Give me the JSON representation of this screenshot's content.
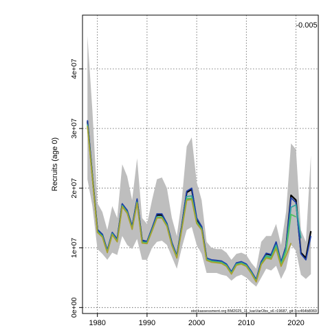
{
  "chart_data": {
    "type": "line",
    "title": "",
    "annotation": "-0.005",
    "footer": "stockassessment.org BM2025_11_kasVarObs_s6 r19687, git:1cc464b8069",
    "ylabel": "Recruits (age 0)",
    "xlabel": "",
    "xlim": [
      1977,
      2024.5
    ],
    "ylim": [
      -1000000,
      49000000
    ],
    "x_ticks": [
      1980,
      1990,
      2000,
      2010,
      2020
    ],
    "x_tick_labels": [
      "1980",
      "1990",
      "2000",
      "2010",
      "2020"
    ],
    "y_ticks": [
      0,
      10000000,
      20000000,
      30000000,
      40000000
    ],
    "y_tick_labels": [
      "0e+00",
      "1e+07",
      "2e+07",
      "3e+07",
      "4e+07"
    ],
    "grid": true,
    "band_color": "#bebebe",
    "band": {
      "x": [
        1978,
        1979,
        1980,
        1981,
        1982,
        1983,
        1984,
        1985,
        1986,
        1987,
        1988,
        1989,
        1990,
        1991,
        1992,
        1993,
        1994,
        1995,
        1996,
        1997,
        1998,
        1999,
        2000,
        2001,
        2002,
        2003,
        2004,
        2005,
        2006,
        2007,
        2008,
        2009,
        2010,
        2011,
        2012,
        2013,
        2014,
        2015,
        2016,
        2017,
        2018,
        2019,
        2020,
        2021,
        2022,
        2023
      ],
      "upper": [
        45500000,
        33000000,
        17500000,
        16000000,
        13000000,
        17000000,
        15000000,
        24000000,
        22000000,
        18000000,
        25000000,
        15000000,
        14000000,
        18000000,
        21500000,
        21800000,
        20000000,
        15000000,
        12000000,
        18000000,
        27000000,
        28500000,
        21000000,
        18000000,
        11000000,
        10000000,
        9800000,
        9800000,
        9200000,
        8000000,
        9000000,
        9200000,
        8800000,
        7500000,
        6500000,
        11000000,
        12000000,
        12000000,
        14000000,
        10500000,
        16000000,
        27500000,
        26500000,
        13000000,
        11000000,
        25500000
      ],
      "lower": [
        21500000,
        17000000,
        9800000,
        9000000,
        8000000,
        9200000,
        8800000,
        12000000,
        10500000,
        9800000,
        11500000,
        8000000,
        8000000,
        10000000,
        11000000,
        11200000,
        10500000,
        8500000,
        6500000,
        10000000,
        13000000,
        13500000,
        10500000,
        9000000,
        5800000,
        5800000,
        5800000,
        5500000,
        5300000,
        4500000,
        5200000,
        5500000,
        5000000,
        4200000,
        3500000,
        5000000,
        6500000,
        6200000,
        7000000,
        4800000,
        6500000,
        10500000,
        9500000,
        5500000,
        4800000,
        5600000
      ]
    },
    "series": [
      {
        "color": "#000000",
        "x": [
          1978,
          1979,
          1980,
          1981,
          1982,
          1983,
          1984,
          1985,
          1986,
          1987,
          1988,
          1989,
          1990,
          1991,
          1992,
          1993,
          1994,
          1995,
          1996,
          1997,
          1998,
          1999,
          2000,
          2001,
          2002,
          2003,
          2004,
          2005,
          2006,
          2007,
          2008,
          2009,
          2010,
          2011,
          2012,
          2013,
          2014,
          2015,
          2016,
          2017,
          2018,
          2019,
          2020,
          2021,
          2022,
          2023
        ],
        "values": [
          31200000,
          22000000,
          13000000,
          12200000,
          9500000,
          12500000,
          11400000,
          17300000,
          16200000,
          13500000,
          18000000,
          11200000,
          11000000,
          13200000,
          15500000,
          15500000,
          14000000,
          10800000,
          8600000,
          13600000,
          19300000,
          19800000,
          14800000,
          13500000,
          8200000,
          7900000,
          7800000,
          7700000,
          7200000,
          5900000,
          7400000,
          7600000,
          7200000,
          6000000,
          4600000,
          7600000,
          9000000,
          8800000,
          10900000,
          7500000,
          10200000,
          18800000,
          18000000,
          9200000,
          8300000,
          12800000
        ]
      },
      {
        "color": "#1f3fa8",
        "x": [
          1978,
          1979,
          1980,
          1981,
          1982,
          1983,
          1984,
          1985,
          1986,
          1987,
          1988,
          1989,
          1990,
          1991,
          1992,
          1993,
          1994,
          1995,
          1996,
          1997,
          1998,
          1999,
          2000,
          2001,
          2002,
          2003,
          2004,
          2005,
          2006,
          2007,
          2008,
          2009,
          2010,
          2011,
          2012,
          2013,
          2014,
          2015,
          2016,
          2017,
          2018,
          2019,
          2020,
          2021,
          2022,
          2023
        ],
        "values": [
          31400000,
          22100000,
          13100000,
          12300000,
          9600000,
          12600000,
          11500000,
          17400000,
          16300000,
          13600000,
          18200000,
          11300000,
          11100000,
          13300000,
          15700000,
          15700000,
          14100000,
          10900000,
          8700000,
          13700000,
          19500000,
          20000000,
          15000000,
          13600000,
          8300000,
          8000000,
          7900000,
          7800000,
          7300000,
          6000000,
          7500000,
          7700000,
          7300000,
          6100000,
          4700000,
          7700000,
          9100000,
          8900000,
          11000000,
          7600000,
          10300000,
          18400000,
          17600000,
          9000000,
          8000000,
          12000000
        ]
      },
      {
        "color": "#2fa6a0",
        "x": [
          1978,
          1979,
          1980,
          1981,
          1982,
          1983,
          1984,
          1985,
          1986,
          1987,
          1988,
          1989,
          1990,
          1991,
          1992,
          1993,
          1994,
          1995,
          1996,
          1997,
          1998,
          1999,
          2000,
          2001,
          2002,
          2003,
          2004,
          2005,
          2006,
          2007,
          2008,
          2009,
          2010,
          2011,
          2012,
          2013,
          2014,
          2015,
          2016,
          2017,
          2018,
          2019,
          2020,
          2021
        ],
        "values": [
          30700000,
          21900000,
          12800000,
          12000000,
          9400000,
          12400000,
          11200000,
          17100000,
          16000000,
          13300000,
          17700000,
          11000000,
          10900000,
          13000000,
          15200000,
          15200000,
          13800000,
          10600000,
          8500000,
          13300000,
          18600000,
          18700000,
          14400000,
          13200000,
          8100000,
          7800000,
          7700000,
          7600000,
          7100000,
          5800000,
          7300000,
          7500000,
          7100000,
          5900000,
          4500000,
          7400000,
          8700000,
          8500000,
          10500000,
          7300000,
          9800000,
          16800000,
          17200000,
          11600000
        ]
      },
      {
        "color": "#4fbf60",
        "x": [
          1978,
          1979,
          1980,
          1981,
          1982,
          1983,
          1984,
          1985,
          1986,
          1987,
          1988,
          1989,
          1990,
          1991,
          1992,
          1993,
          1994,
          1995,
          1996,
          1997,
          1998,
          1999,
          2000,
          2001,
          2002,
          2003,
          2004,
          2005,
          2006,
          2007,
          2008,
          2009,
          2010,
          2011,
          2012,
          2013,
          2014,
          2015,
          2016,
          2017,
          2018,
          2019,
          2020
        ],
        "values": [
          30500000,
          21800000,
          12700000,
          11900000,
          9300000,
          12300000,
          11100000,
          17000000,
          15900000,
          13200000,
          17600000,
          10900000,
          10800000,
          12900000,
          15100000,
          15100000,
          13700000,
          10500000,
          8400000,
          13200000,
          18200000,
          18300000,
          14200000,
          13100000,
          8000000,
          7700000,
          7600000,
          7500000,
          7000000,
          5700000,
          7200000,
          7400000,
          7000000,
          5800000,
          4400000,
          7300000,
          8500000,
          8300000,
          10200000,
          7100000,
          9500000,
          15600000,
          15200000
        ]
      },
      {
        "color": "#a8a030",
        "x": [
          1978,
          1979,
          1980,
          1981,
          1982,
          1983,
          1984,
          1985,
          1986,
          1987,
          1988,
          1989,
          1990,
          1991,
          1992,
          1993,
          1994,
          1995,
          1996,
          1997,
          1998,
          1999,
          2000,
          2001,
          2002,
          2003,
          2004,
          2005,
          2006,
          2007,
          2008,
          2009,
          2010,
          2011,
          2012,
          2013,
          2014,
          2015,
          2016,
          2017,
          2018,
          2019
        ],
        "values": [
          30400000,
          21700000,
          12600000,
          11800000,
          9200000,
          12200000,
          11000000,
          16900000,
          15800000,
          13100000,
          17500000,
          10800000,
          10700000,
          12800000,
          15000000,
          15000000,
          13600000,
          10400000,
          8300000,
          13100000,
          18000000,
          18100000,
          14100000,
          13000000,
          7900000,
          7600000,
          7500000,
          7400000,
          6900000,
          5600000,
          7100000,
          7300000,
          6900000,
          5700000,
          4300000,
          7200000,
          8300000,
          8100000,
          9900000,
          6900000,
          8700000,
          10800000
        ]
      }
    ]
  }
}
